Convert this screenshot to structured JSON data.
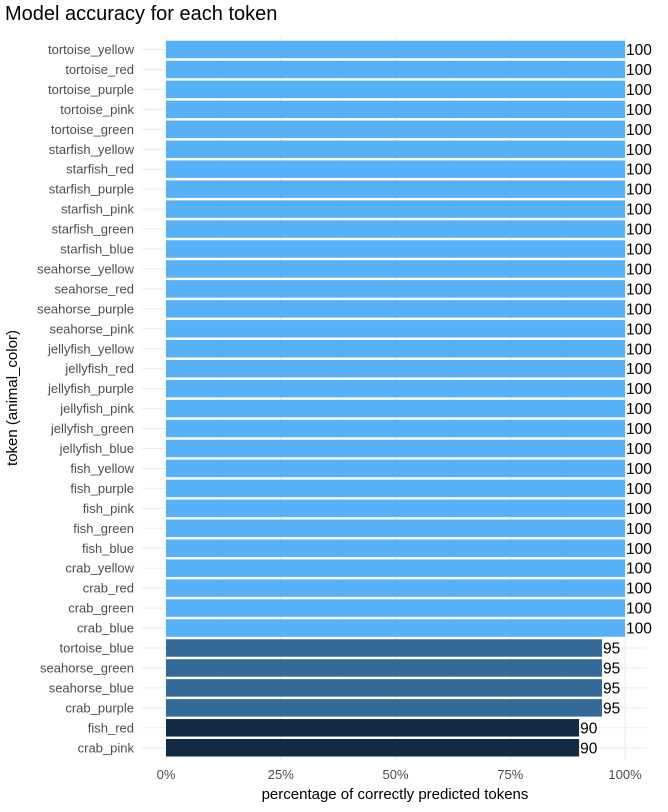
{
  "chart_data": {
    "type": "bar",
    "orientation": "horizontal",
    "title": "Model accuracy for each token",
    "xlabel": "percentage of correctly predicted tokens",
    "ylabel": "token (animal_color)",
    "xlim": [
      0,
      100
    ],
    "x_ticks": [
      {
        "value": 0,
        "label": "0%"
      },
      {
        "value": 25,
        "label": "25%"
      },
      {
        "value": 50,
        "label": "50%"
      },
      {
        "value": 75,
        "label": "75%"
      },
      {
        "value": 100,
        "label": "100%"
      }
    ],
    "grid": true,
    "legend": "none",
    "color_scale": {
      "100": "#56B1F7",
      "95": "#336A98",
      "90": "#132B43"
    },
    "categories": [
      "tortoise_yellow",
      "tortoise_red",
      "tortoise_purple",
      "tortoise_pink",
      "tortoise_green",
      "starfish_yellow",
      "starfish_red",
      "starfish_purple",
      "starfish_pink",
      "starfish_green",
      "starfish_blue",
      "seahorse_yellow",
      "seahorse_red",
      "seahorse_purple",
      "seahorse_pink",
      "jellyfish_yellow",
      "jellyfish_red",
      "jellyfish_purple",
      "jellyfish_pink",
      "jellyfish_green",
      "jellyfish_blue",
      "fish_yellow",
      "fish_purple",
      "fish_pink",
      "fish_green",
      "fish_blue",
      "crab_yellow",
      "crab_red",
      "crab_green",
      "crab_blue",
      "tortoise_blue",
      "seahorse_green",
      "seahorse_blue",
      "crab_purple",
      "fish_red",
      "crab_pink"
    ],
    "values": [
      100,
      100,
      100,
      100,
      100,
      100,
      100,
      100,
      100,
      100,
      100,
      100,
      100,
      100,
      100,
      100,
      100,
      100,
      100,
      100,
      100,
      100,
      100,
      100,
      100,
      100,
      100,
      100,
      100,
      100,
      95,
      95,
      95,
      95,
      90,
      90
    ]
  }
}
